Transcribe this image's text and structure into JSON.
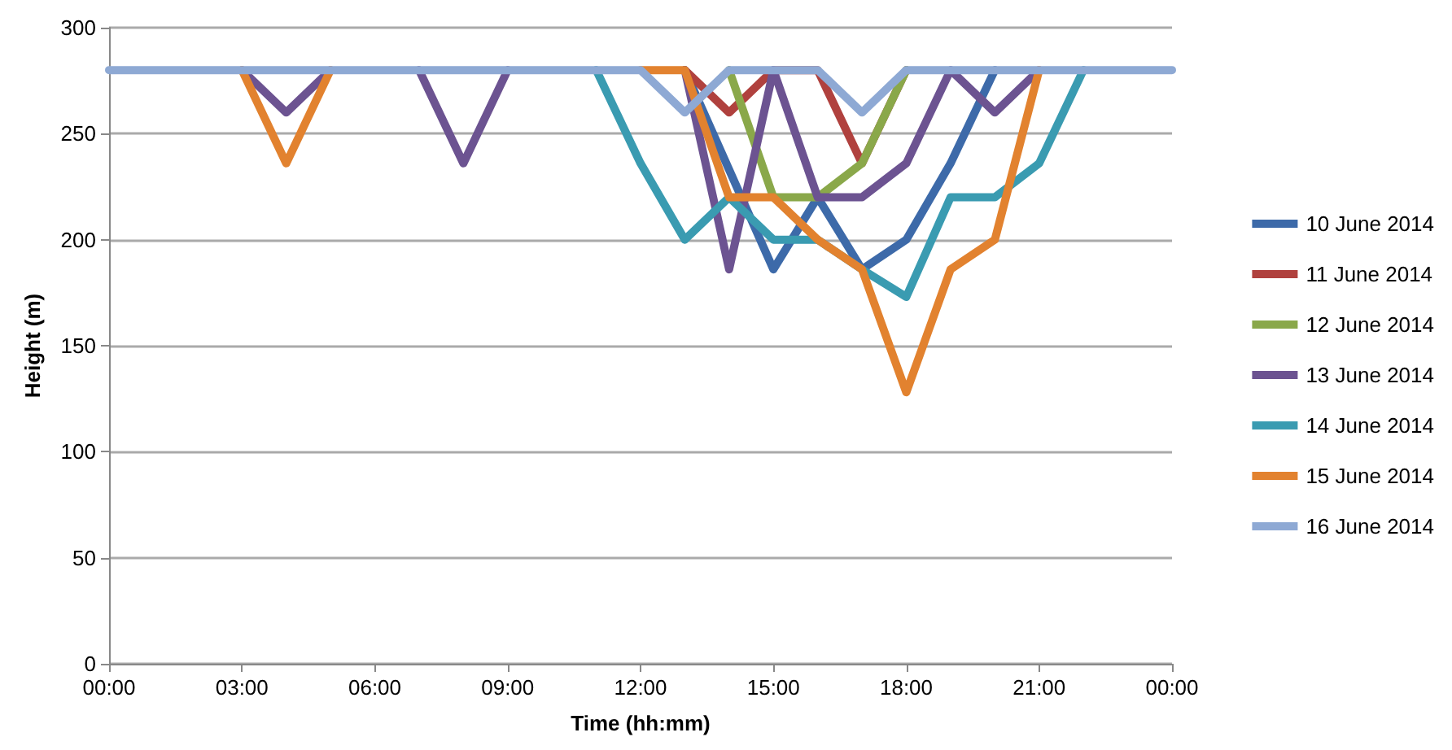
{
  "chart_data": {
    "type": "line",
    "xlabel": "Time (hh:mm)",
    "ylabel": "Height (m)",
    "x": [
      0,
      1,
      2,
      3,
      4,
      5,
      6,
      7,
      8,
      9,
      10,
      11,
      12,
      13,
      14,
      15,
      16,
      17,
      18,
      19,
      20,
      21,
      22,
      23,
      24
    ],
    "xlim": [
      0,
      24
    ],
    "xticks": [
      {
        "value": 0,
        "label": "00:00"
      },
      {
        "value": 3,
        "label": "03:00"
      },
      {
        "value": 6,
        "label": "06:00"
      },
      {
        "value": 9,
        "label": "09:00"
      },
      {
        "value": 12,
        "label": "12:00"
      },
      {
        "value": 15,
        "label": "15:00"
      },
      {
        "value": 18,
        "label": "18:00"
      },
      {
        "value": 21,
        "label": "21:00"
      },
      {
        "value": 24,
        "label": "00:00"
      }
    ],
    "ylim": [
      0,
      300
    ],
    "yticks": [
      0,
      50,
      100,
      150,
      200,
      250,
      300
    ],
    "grid": "y",
    "legend": "right",
    "marker": "none",
    "line_style": "solid",
    "series": [
      {
        "name": "10 June 2014",
        "color": "#3d6aa9",
        "values": [
          null,
          null,
          null,
          null,
          null,
          null,
          null,
          null,
          null,
          null,
          null,
          null,
          null,
          280,
          233,
          186,
          220,
          186,
          200,
          236,
          280,
          null,
          null,
          null,
          null
        ]
      },
      {
        "name": "11 June 2014",
        "color": "#b0413e",
        "values": [
          null,
          null,
          null,
          null,
          null,
          null,
          null,
          null,
          null,
          null,
          null,
          null,
          null,
          280,
          260,
          280,
          280,
          236,
          280,
          null,
          null,
          null,
          null,
          null,
          null
        ]
      },
      {
        "name": "12 June 2014",
        "color": "#8aa84a",
        "values": [
          null,
          null,
          null,
          null,
          null,
          null,
          null,
          null,
          null,
          null,
          null,
          null,
          null,
          null,
          280,
          220,
          220,
          236,
          280,
          null,
          null,
          null,
          null,
          null,
          null
        ]
      },
      {
        "name": "13 June 2014",
        "color": "#6c5391",
        "values": [
          null,
          null,
          null,
          280,
          260,
          280,
          null,
          280,
          236,
          280,
          null,
          null,
          null,
          280,
          186,
          280,
          220,
          220,
          236,
          280,
          260,
          280,
          null,
          null,
          null
        ]
      },
      {
        "name": "14 June 2014",
        "color": "#3a9bb1",
        "values": [
          null,
          null,
          null,
          null,
          null,
          null,
          null,
          null,
          null,
          null,
          null,
          280,
          236,
          200,
          220,
          200,
          200,
          186,
          173,
          220,
          220,
          236,
          280,
          null,
          null
        ]
      },
      {
        "name": "15 June 2014",
        "color": "#e2822f",
        "values": [
          null,
          null,
          null,
          280,
          236,
          280,
          null,
          null,
          null,
          null,
          null,
          null,
          280,
          280,
          220,
          220,
          200,
          186,
          128,
          186,
          200,
          280,
          null,
          null,
          null
        ]
      },
      {
        "name": "16 June 2014",
        "color": "#8ea9d4",
        "values": [
          280,
          280,
          280,
          280,
          280,
          280,
          280,
          280,
          280,
          280,
          280,
          280,
          280,
          260,
          280,
          280,
          280,
          260,
          280,
          280,
          280,
          280,
          280,
          280,
          280
        ]
      }
    ]
  }
}
